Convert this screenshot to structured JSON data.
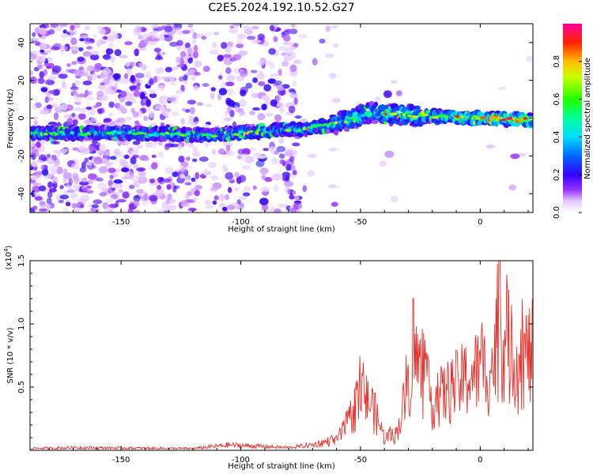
{
  "title": "C2E5.2024.192.10.52.G27",
  "chart_data": [
    {
      "type": "heatmap",
      "xlabel": "Height of straight line (km)",
      "ylabel": "Frequency (Hz)",
      "xlim": [
        -188,
        22
      ],
      "ylim": [
        -50,
        50
      ],
      "xticks": [
        -150,
        -100,
        -50,
        0
      ],
      "yticks": [
        -40,
        -20,
        0,
        20,
        40
      ],
      "colorbar": {
        "label": "Normalized spectral amplitude",
        "range": [
          0.0,
          1.0
        ],
        "ticks": [
          "0.0",
          "0.2",
          "0.4",
          "0.6",
          "0.8"
        ],
        "colors": [
          "#ffffff",
          "#cc99ff",
          "#7700ee",
          "#0000ff",
          "#00ddff",
          "#00ff66",
          "#ffff00",
          "#ff8800",
          "#ff0000",
          "#ff00aa"
        ]
      },
      "ridge": {
        "description_points": [
          {
            "x": -188,
            "y": -8
          },
          {
            "x": -150,
            "y": -8
          },
          {
            "x": -110,
            "y": -9
          },
          {
            "x": -90,
            "y": -7
          },
          {
            "x": -75,
            "y": -6
          },
          {
            "x": -60,
            "y": -3
          },
          {
            "x": -45,
            "y": 3
          },
          {
            "x": -35,
            "y": 2
          },
          {
            "x": -25,
            "y": 1
          },
          {
            "x": 0,
            "y": 0
          },
          {
            "x": 22,
            "y": -1
          }
        ]
      },
      "grid": false
    },
    {
      "type": "line",
      "xlabel": "Height of straight line (km)",
      "ylabel": "SNR (10 * v/v)",
      "yscale_label": "(x10^4)",
      "xlim": [
        -188,
        22
      ],
      "ylim": [
        0,
        1.5
      ],
      "xticks": [
        -150,
        -100,
        -50,
        0
      ],
      "yticks": [
        "0.5",
        "1.0",
        "1.5"
      ],
      "series": [
        {
          "color": "#e8302a",
          "envelope": [
            {
              "x": -188,
              "y": 0.02
            },
            {
              "x": -170,
              "y": 0.03
            },
            {
              "x": -120,
              "y": 0.02
            },
            {
              "x": -105,
              "y": 0.06
            },
            {
              "x": -80,
              "y": 0.03
            },
            {
              "x": -70,
              "y": 0.06
            },
            {
              "x": -60,
              "y": 0.12
            },
            {
              "x": -55,
              "y": 0.35
            },
            {
              "x": -50,
              "y": 0.7
            },
            {
              "x": -45,
              "y": 0.55
            },
            {
              "x": -40,
              "y": 0.15
            },
            {
              "x": -35,
              "y": 0.2
            },
            {
              "x": -30,
              "y": 0.8
            },
            {
              "x": -28,
              "y": 1.2
            },
            {
              "x": -20,
              "y": 0.6
            },
            {
              "x": -10,
              "y": 0.8
            },
            {
              "x": 0,
              "y": 1.0
            },
            {
              "x": 5,
              "y": 1.0
            },
            {
              "x": 8,
              "y": 1.5
            },
            {
              "x": 15,
              "y": 1.1
            },
            {
              "x": 22,
              "y": 1.2
            }
          ]
        }
      ],
      "grid": false
    }
  ]
}
